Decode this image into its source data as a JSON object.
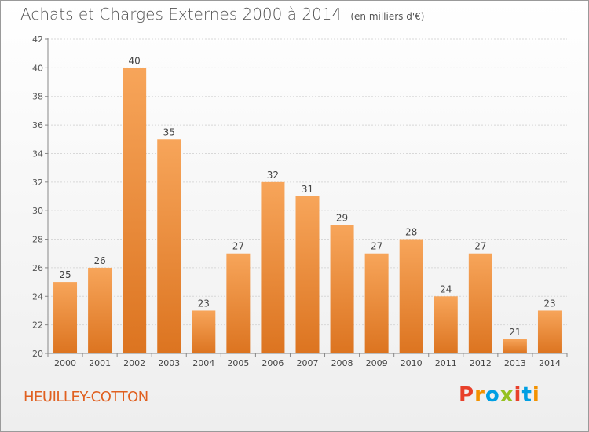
{
  "title": "Achats et Charges Externes 2000 à 2014",
  "unit": "(en milliers d'€)",
  "place": "HEUILLEY-COTTON",
  "logo": "Proxiti",
  "colors": {
    "bar_light": "#f7a55a",
    "bar_dark": "#dc7420",
    "place_text": "#e06020",
    "logo_letters": [
      "#e8402a",
      "#f39200",
      "#009fe3",
      "#95c11f",
      "#e8402a",
      "#009fe3",
      "#f39200"
    ]
  },
  "chart_data": {
    "type": "bar",
    "title": "Achats et Charges Externes 2000 à 2014",
    "categories": [
      "2000",
      "2001",
      "2002",
      "2003",
      "2004",
      "2005",
      "2006",
      "2007",
      "2008",
      "2009",
      "2010",
      "2011",
      "2012",
      "2013",
      "2014"
    ],
    "values": [
      25,
      26,
      40,
      35,
      23,
      27,
      32,
      31,
      29,
      27,
      28,
      24,
      27,
      21,
      23
    ],
    "ylim": [
      20,
      42
    ],
    "yticks": [
      20,
      22,
      24,
      26,
      28,
      30,
      32,
      34,
      36,
      38,
      40,
      42
    ],
    "grid": true,
    "data_labels": true
  }
}
